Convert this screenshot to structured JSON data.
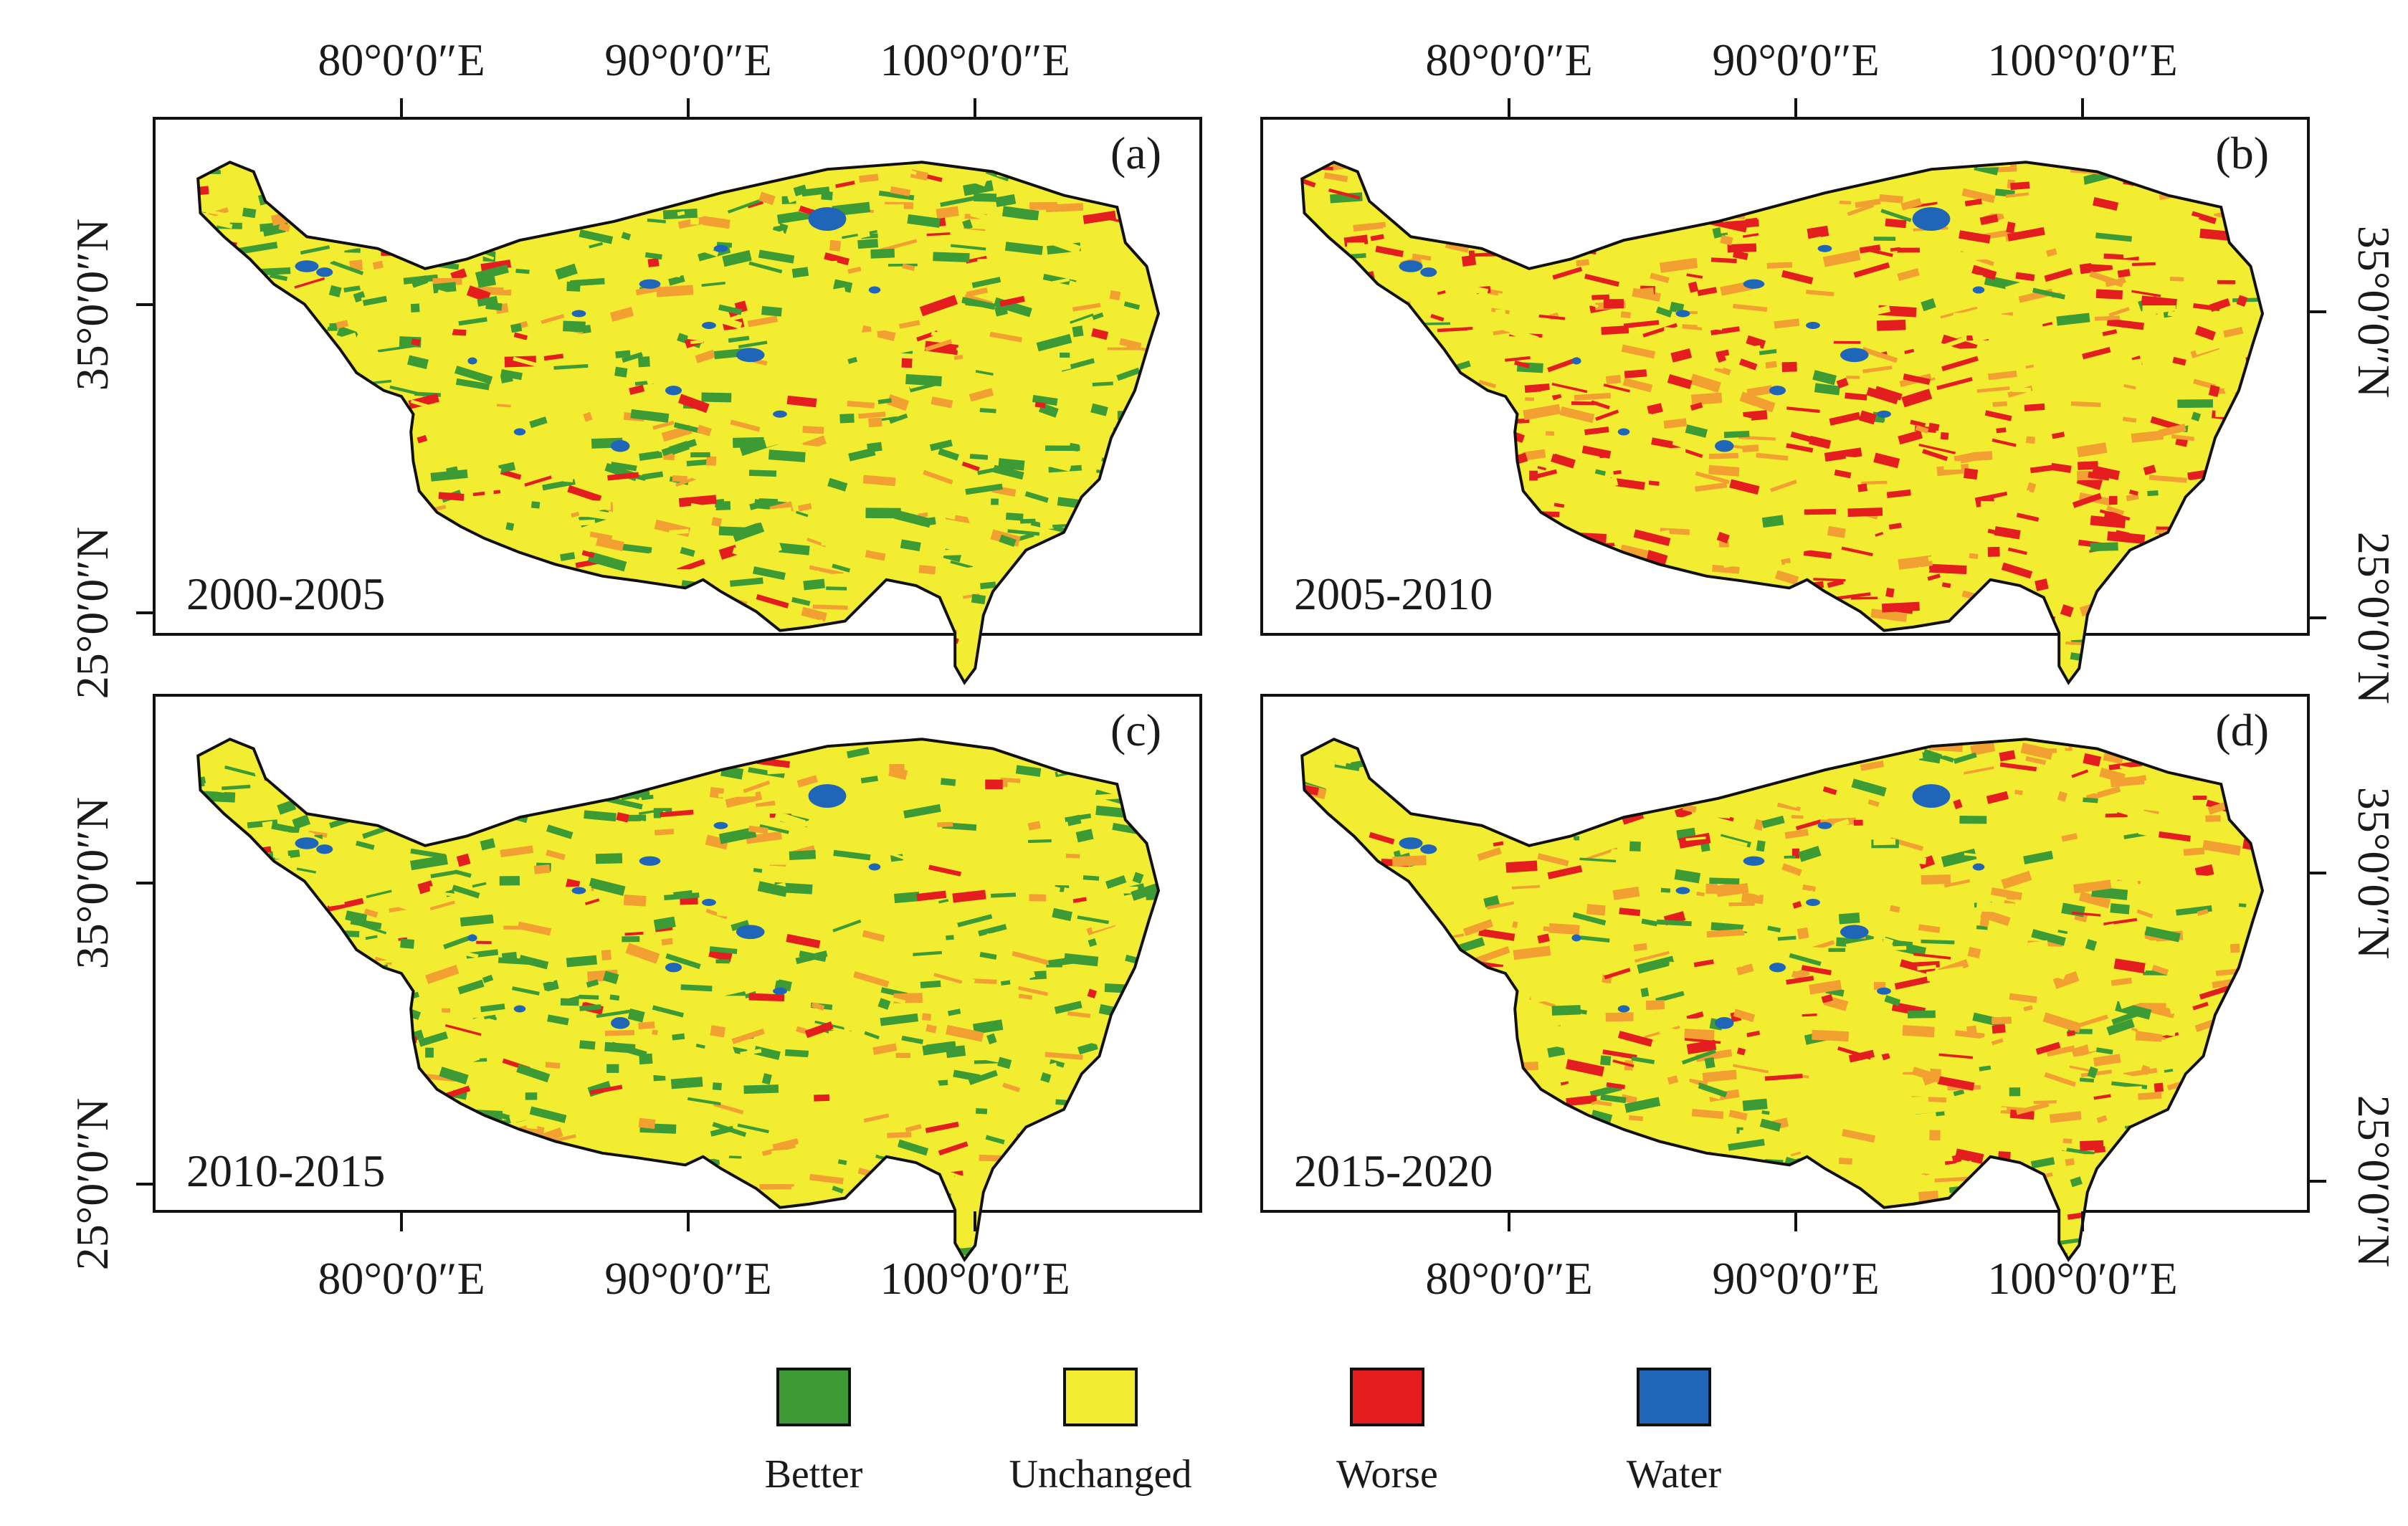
{
  "colors": {
    "better": "#3d9b35",
    "unchanged": "#f3ed32",
    "worse": "#e41e1e",
    "water": "#1f66b8",
    "orange": "#f2a032",
    "frame": "#111111"
  },
  "axes": {
    "lon_labels": [
      "80°0′0″E",
      "90°0′0″E",
      "100°0′0″E"
    ],
    "lat_labels": [
      "35°0′0″N",
      "25°0′0″N"
    ]
  },
  "panels": [
    {
      "tag": "(a)",
      "period": "2000-2005",
      "dominant": "mixed_better"
    },
    {
      "tag": "(b)",
      "period": "2005-2010",
      "dominant": "worse"
    },
    {
      "tag": "(c)",
      "period": "2010-2015",
      "dominant": "better"
    },
    {
      "tag": "(d)",
      "period": "2015-2020",
      "dominant": "mixed_worse"
    }
  ],
  "legend": [
    {
      "key": "better",
      "label": "Better"
    },
    {
      "key": "unchanged",
      "label": "Unchanged"
    },
    {
      "key": "worse",
      "label": "Worse"
    },
    {
      "key": "water",
      "label": "Water"
    }
  ]
}
